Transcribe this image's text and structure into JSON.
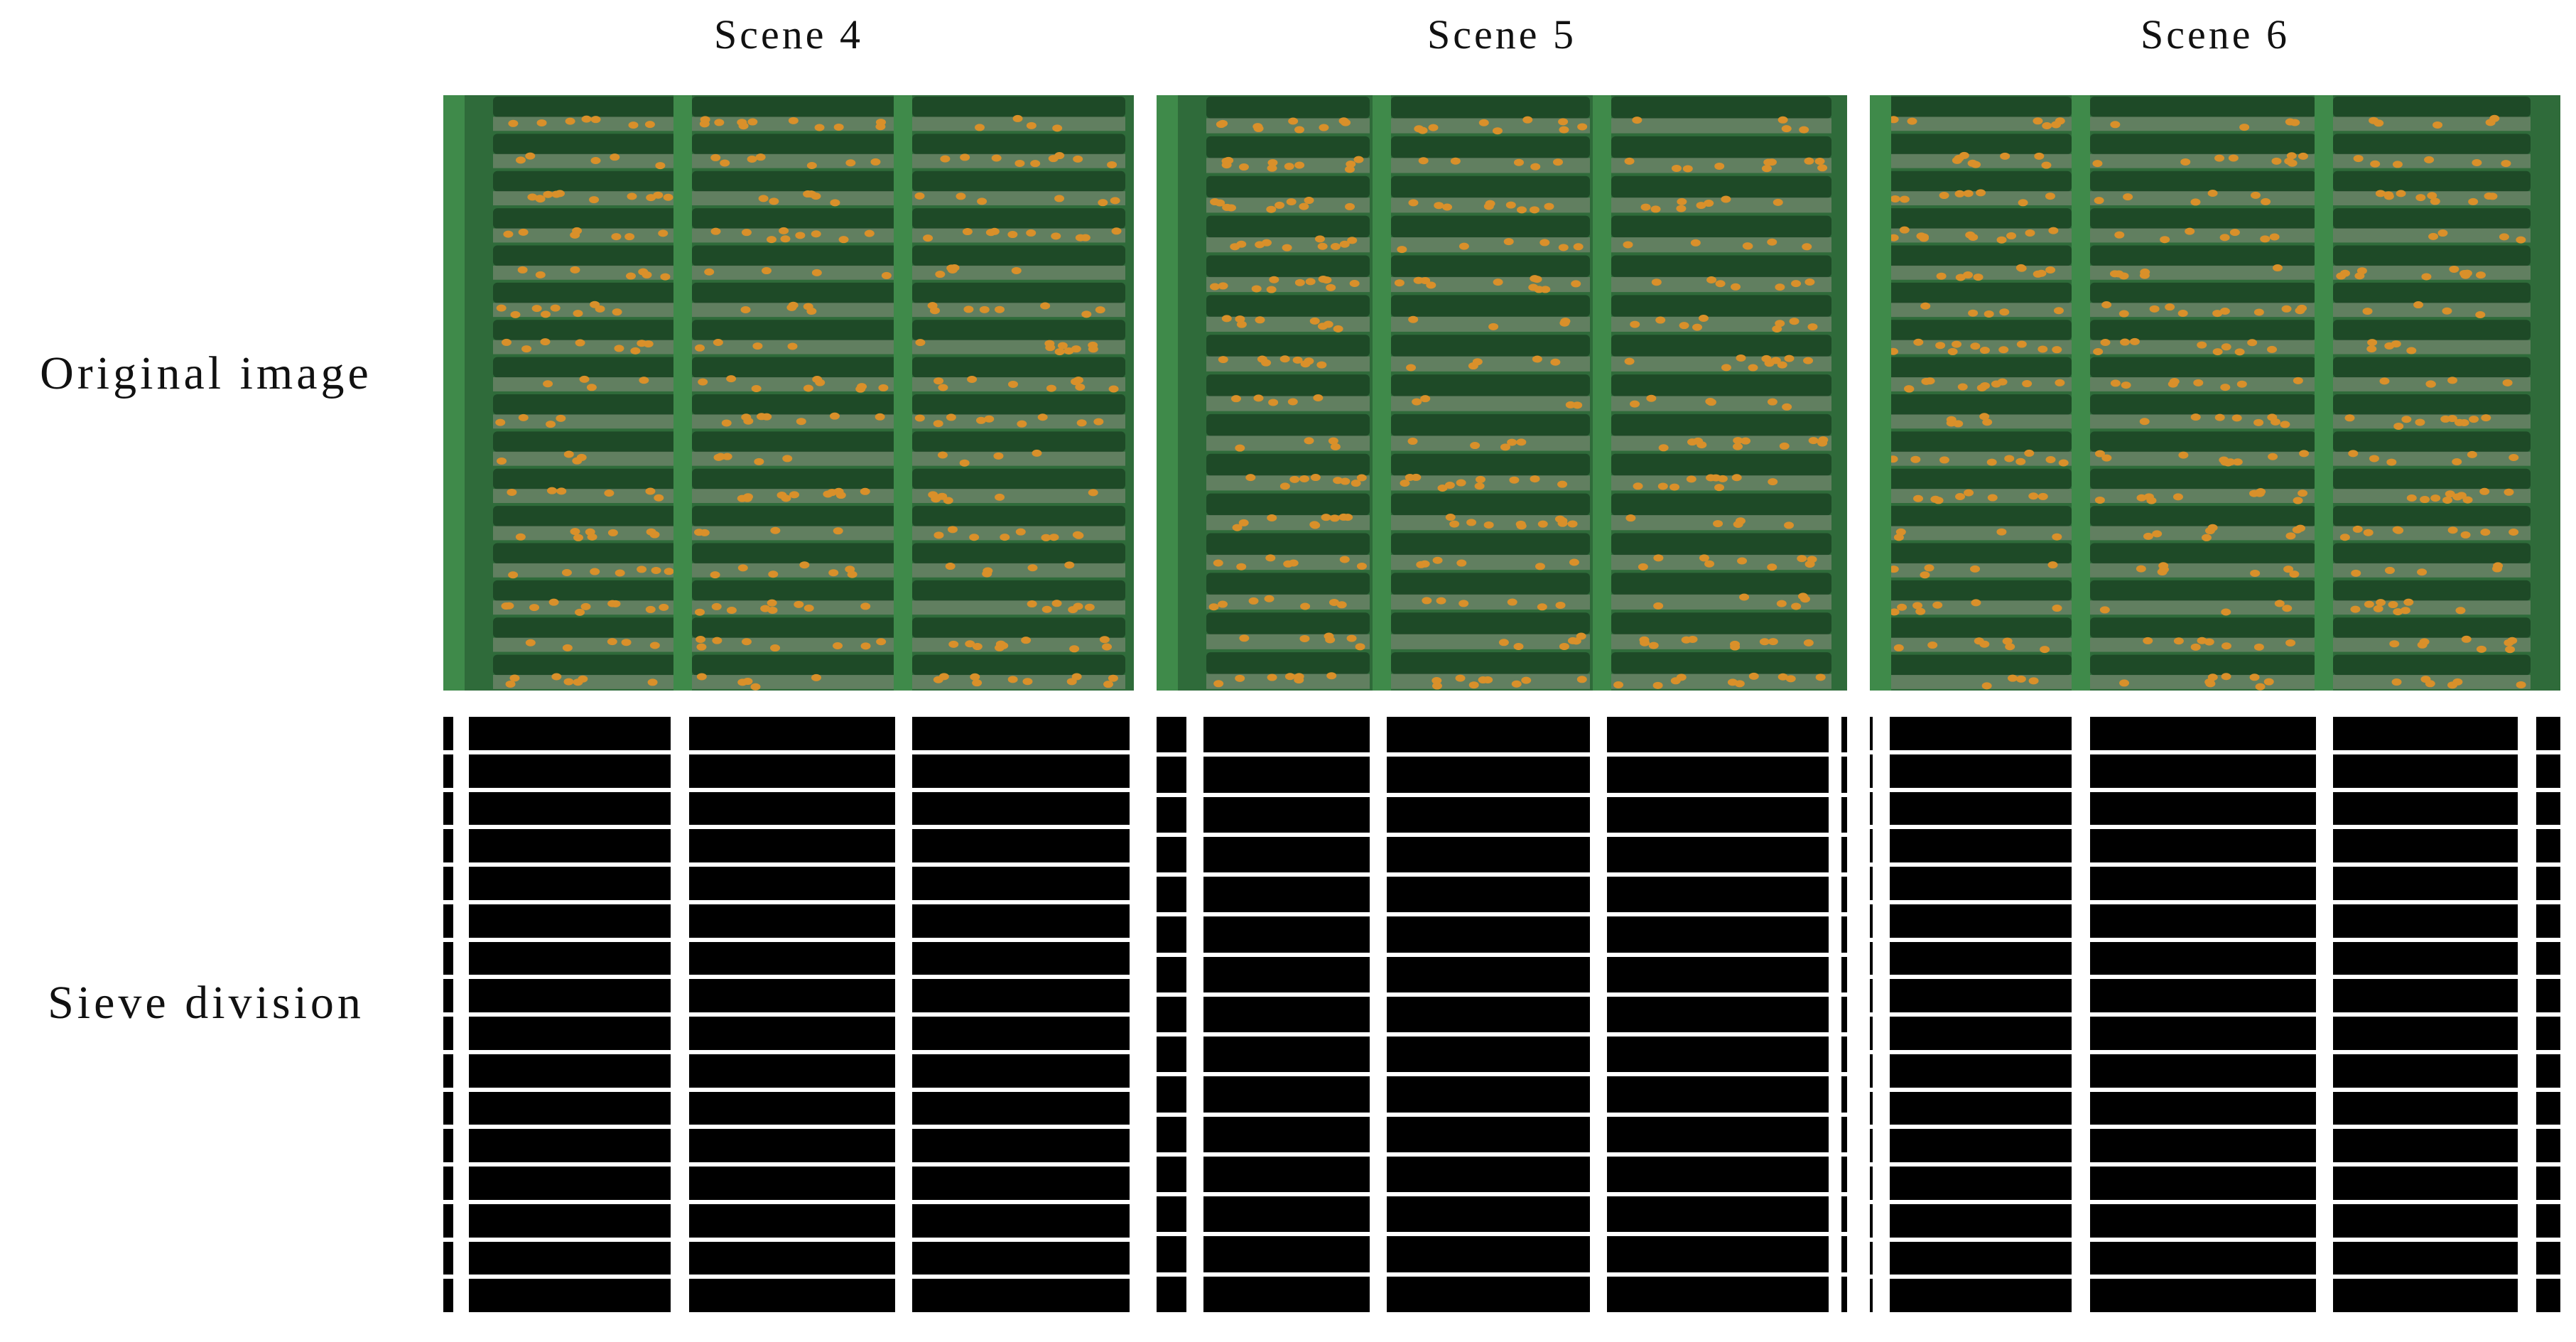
{
  "columns": [
    {
      "label": "Scene 4"
    },
    {
      "label": "Scene 5"
    },
    {
      "label": "Scene 6"
    }
  ],
  "rows": [
    {
      "label": "Original image"
    },
    {
      "label": "Sieve division"
    }
  ],
  "colors": {
    "sieve_green": "#2f6b3a",
    "sieve_dark_green": "#1e4a27",
    "grain_orange": "#d9902a",
    "mask_black": "#000000",
    "mask_white": "#ffffff"
  }
}
